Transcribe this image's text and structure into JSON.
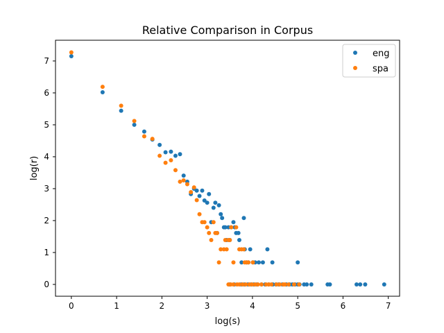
{
  "chart_data": {
    "type": "scatter",
    "title": "Relative Comparison in Corpus",
    "xlabel": "log(s)",
    "ylabel": "log(r)",
    "xlim": [
      -0.35,
      7.25
    ],
    "ylim": [
      -0.37,
      7.65
    ],
    "xticks": [
      "0",
      "1",
      "2",
      "3",
      "4",
      "5",
      "6",
      "7"
    ],
    "yticks": [
      "0",
      "1",
      "2",
      "3",
      "4",
      "5",
      "6",
      "7"
    ],
    "grid": false,
    "legend_position": "top-right",
    "series": [
      {
        "name": "eng",
        "color": "#1f77b4",
        "points": [
          [
            0.0,
            7.15
          ],
          [
            0.69,
            6.02
          ],
          [
            1.1,
            5.44
          ],
          [
            1.39,
            5.0
          ],
          [
            1.61,
            4.79
          ],
          [
            1.79,
            4.54
          ],
          [
            1.95,
            4.37
          ],
          [
            2.08,
            4.14
          ],
          [
            2.2,
            4.16
          ],
          [
            2.3,
            4.03
          ],
          [
            2.4,
            4.08
          ],
          [
            2.48,
            3.41
          ],
          [
            2.56,
            3.22
          ],
          [
            2.64,
            2.83
          ],
          [
            2.71,
            3.0
          ],
          [
            2.77,
            2.94
          ],
          [
            2.83,
            2.77
          ],
          [
            2.89,
            2.94
          ],
          [
            2.94,
            2.63
          ],
          [
            3.0,
            2.56
          ],
          [
            3.04,
            2.83
          ],
          [
            3.09,
            1.95
          ],
          [
            3.14,
            2.4
          ],
          [
            3.18,
            2.56
          ],
          [
            3.22,
            1.61
          ],
          [
            3.26,
            2.48
          ],
          [
            3.3,
            2.2
          ],
          [
            3.33,
            2.08
          ],
          [
            3.37,
            1.79
          ],
          [
            3.4,
            1.79
          ],
          [
            3.43,
            1.39
          ],
          [
            3.47,
            1.79
          ],
          [
            3.5,
            1.39
          ],
          [
            3.53,
            1.79
          ],
          [
            3.58,
            1.95
          ],
          [
            3.61,
            1.79
          ],
          [
            3.64,
            1.61
          ],
          [
            3.69,
            1.61
          ],
          [
            3.71,
            1.39
          ],
          [
            3.76,
            0.69
          ],
          [
            3.81,
            2.08
          ],
          [
            3.83,
            1.1
          ],
          [
            3.87,
            0.69
          ],
          [
            3.91,
            0.69
          ],
          [
            3.95,
            1.1
          ],
          [
            4.01,
            0.69
          ],
          [
            4.06,
            0.69
          ],
          [
            4.14,
            0.69
          ],
          [
            4.23,
            0.69
          ],
          [
            4.33,
            1.1
          ],
          [
            4.44,
            0.69
          ],
          [
            5.0,
            0.69
          ],
          [
            3.5,
            0.0
          ],
          [
            3.6,
            0.0
          ],
          [
            3.75,
            0.0
          ],
          [
            3.82,
            0.0
          ],
          [
            3.9,
            0.0
          ],
          [
            3.97,
            0.0
          ],
          [
            4.03,
            0.0
          ],
          [
            4.1,
            0.0
          ],
          [
            4.2,
            0.0
          ],
          [
            4.28,
            0.0
          ],
          [
            4.36,
            0.0
          ],
          [
            4.45,
            0.0
          ],
          [
            4.52,
            0.0
          ],
          [
            4.58,
            0.0
          ],
          [
            4.66,
            0.0
          ],
          [
            4.75,
            0.0
          ],
          [
            4.82,
            0.0
          ],
          [
            4.88,
            0.0
          ],
          [
            4.94,
            0.0
          ],
          [
            5.0,
            0.0
          ],
          [
            5.04,
            0.0
          ],
          [
            5.14,
            0.0
          ],
          [
            5.2,
            0.0
          ],
          [
            5.3,
            0.0
          ],
          [
            5.66,
            0.0
          ],
          [
            5.71,
            0.0
          ],
          [
            6.3,
            0.0
          ],
          [
            6.38,
            0.0
          ],
          [
            6.49,
            0.0
          ],
          [
            6.91,
            0.0
          ]
        ]
      },
      {
        "name": "spa",
        "color": "#ff7f0e",
        "points": [
          [
            0.0,
            7.27
          ],
          [
            0.69,
            6.19
          ],
          [
            1.1,
            5.6
          ],
          [
            1.39,
            5.12
          ],
          [
            1.61,
            4.64
          ],
          [
            1.79,
            4.56
          ],
          [
            1.95,
            4.03
          ],
          [
            2.08,
            3.81
          ],
          [
            2.2,
            3.89
          ],
          [
            2.3,
            3.58
          ],
          [
            2.4,
            3.22
          ],
          [
            2.48,
            3.26
          ],
          [
            2.56,
            3.14
          ],
          [
            2.64,
            2.89
          ],
          [
            2.71,
            3.04
          ],
          [
            2.77,
            2.64
          ],
          [
            2.83,
            2.2
          ],
          [
            2.89,
            1.95
          ],
          [
            2.94,
            1.95
          ],
          [
            3.0,
            1.79
          ],
          [
            3.04,
            1.61
          ],
          [
            3.09,
            1.39
          ],
          [
            3.14,
            1.95
          ],
          [
            3.18,
            1.61
          ],
          [
            3.22,
            1.61
          ],
          [
            3.26,
            0.69
          ],
          [
            3.3,
            1.1
          ],
          [
            3.37,
            1.1
          ],
          [
            3.4,
            1.39
          ],
          [
            3.43,
            1.1
          ],
          [
            3.47,
            1.39
          ],
          [
            3.5,
            1.39
          ],
          [
            3.53,
            1.79
          ],
          [
            3.58,
            0.69
          ],
          [
            3.64,
            1.79
          ],
          [
            3.71,
            1.1
          ],
          [
            3.76,
            1.1
          ],
          [
            3.81,
            1.1
          ],
          [
            3.83,
            0.69
          ],
          [
            3.87,
            0.69
          ],
          [
            3.91,
            0.69
          ],
          [
            4.01,
            0.69
          ],
          [
            3.47,
            0.0
          ],
          [
            3.52,
            0.0
          ],
          [
            3.58,
            0.0
          ],
          [
            3.66,
            0.0
          ],
          [
            3.71,
            0.0
          ],
          [
            3.78,
            0.0
          ],
          [
            3.85,
            0.0
          ],
          [
            3.93,
            0.0
          ],
          [
            3.99,
            0.0
          ],
          [
            4.06,
            0.0
          ],
          [
            4.12,
            0.0
          ],
          [
            4.2,
            0.0
          ],
          [
            4.3,
            0.0
          ],
          [
            4.36,
            0.0
          ],
          [
            4.42,
            0.0
          ],
          [
            4.53,
            0.0
          ],
          [
            4.6,
            0.0
          ],
          [
            4.68,
            0.0
          ],
          [
            4.72,
            0.0
          ],
          [
            4.8,
            0.0
          ],
          [
            4.92,
            0.0
          ],
          [
            5.03,
            0.0
          ]
        ]
      }
    ]
  }
}
